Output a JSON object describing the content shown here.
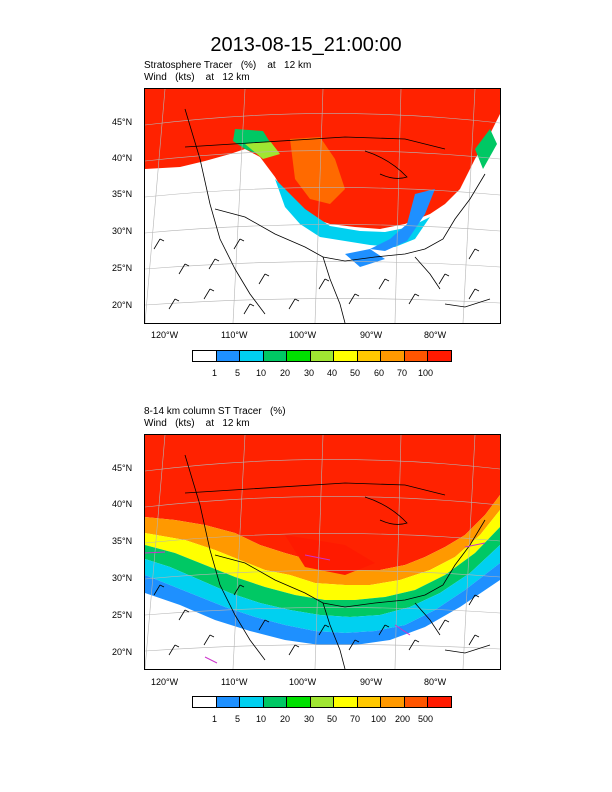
{
  "title": "2013-08-15_21:00:00",
  "panels": [
    {
      "subtitle1": "Stratosphere Tracer   (%)    at   12 km",
      "subtitle2": "Wind   (kts)    at   12 km",
      "lat_labels": [
        "45°N",
        "40°N",
        "35°N",
        "30°N",
        "25°N",
        "20°N"
      ],
      "lon_labels": [
        "120°W",
        "110°W",
        "100°W",
        "90°W",
        "80°W"
      ],
      "colorbar": {
        "labels": [
          "1",
          "5",
          "10",
          "20",
          "30",
          "40",
          "50",
          "60",
          "70",
          "100"
        ],
        "colors": [
          "#ffffff",
          "#1e90ff",
          "#00d0f0",
          "#00c864",
          "#00e000",
          "#a0e632",
          "#ffff00",
          "#ffc800",
          "#ff9900",
          "#ff5500",
          "#ff1a00"
        ]
      }
    },
    {
      "subtitle1": "8-14 km column ST Tracer   (%)",
      "subtitle2": "Wind   (kts)    at   12 km",
      "lat_labels": [
        "45°N",
        "40°N",
        "35°N",
        "30°N",
        "25°N",
        "20°N"
      ],
      "lon_labels": [
        "120°W",
        "110°W",
        "100°W",
        "90°W",
        "80°W"
      ],
      "colorbar": {
        "labels": [
          "1",
          "5",
          "10",
          "20",
          "30",
          "50",
          "70",
          "100",
          "200",
          "500"
        ],
        "colors": [
          "#ffffff",
          "#1e90ff",
          "#00d0f0",
          "#00c864",
          "#00e000",
          "#a0e632",
          "#ffff00",
          "#ffc800",
          "#ff9900",
          "#ff5500",
          "#ff1a00"
        ]
      }
    }
  ]
}
